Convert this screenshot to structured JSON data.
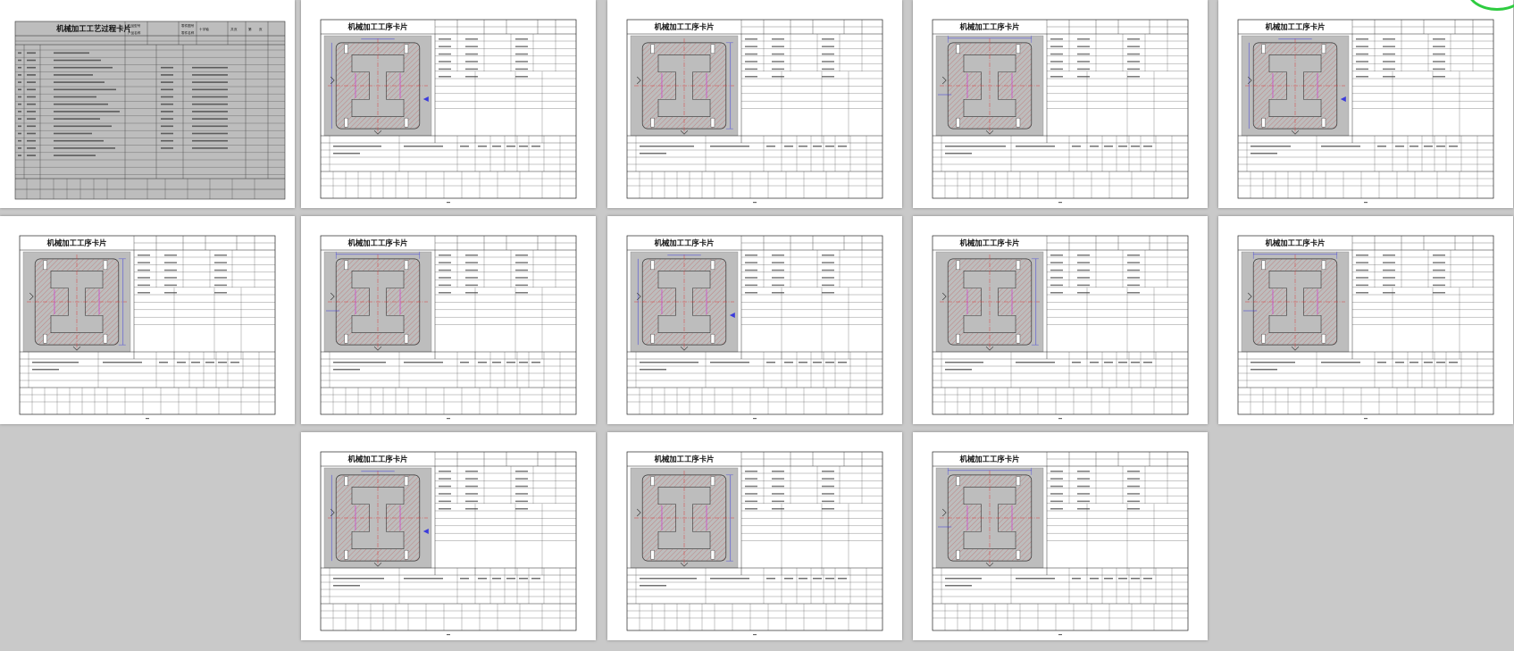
{
  "viewer": {
    "layout": "multi-page thumbnail grid",
    "rows": 3,
    "columns": 5,
    "page_count": 13
  },
  "card": {
    "process_title": "机械加工工艺过程卡片",
    "operation_title": "机械加工工序卡片",
    "header_labels": [
      "产品型号",
      "零件图号",
      "产品名称",
      "零件名称",
      "十字轴",
      "共",
      "页",
      "第",
      "页"
    ],
    "column_labels": [
      "工步号",
      "工步内容",
      "工艺装备",
      "主轴转速",
      "切削速度",
      "进给量",
      "切削深度",
      "进给次数",
      "工步工时"
    ],
    "footer_labels": [
      "设计(日期)",
      "审核(日期)",
      "标准化(日期)",
      "会签(日期)"
    ]
  },
  "pages": [
    {
      "index": 1,
      "type": "process-card"
    },
    {
      "index": 2,
      "type": "operation-card"
    },
    {
      "index": 3,
      "type": "operation-card"
    },
    {
      "index": 4,
      "type": "operation-card"
    },
    {
      "index": 5,
      "type": "operation-card"
    },
    {
      "index": 6,
      "type": "operation-card"
    },
    {
      "index": 7,
      "type": "operation-card"
    },
    {
      "index": 8,
      "type": "operation-card"
    },
    {
      "index": 9,
      "type": "operation-card"
    },
    {
      "index": 10,
      "type": "operation-card"
    },
    {
      "index": 11,
      "type": "operation-card"
    },
    {
      "index": 12,
      "type": "operation-card"
    },
    {
      "index": 13,
      "type": "operation-card"
    }
  ],
  "colors": {
    "background": "#c9c9c9",
    "page": "#ffffff",
    "drawing_fill": "#bdbdbd",
    "hatch": "#c26a6a",
    "centerline": "#e03030",
    "dimension": "#3b3bdc",
    "badge": "#2ecc40"
  }
}
